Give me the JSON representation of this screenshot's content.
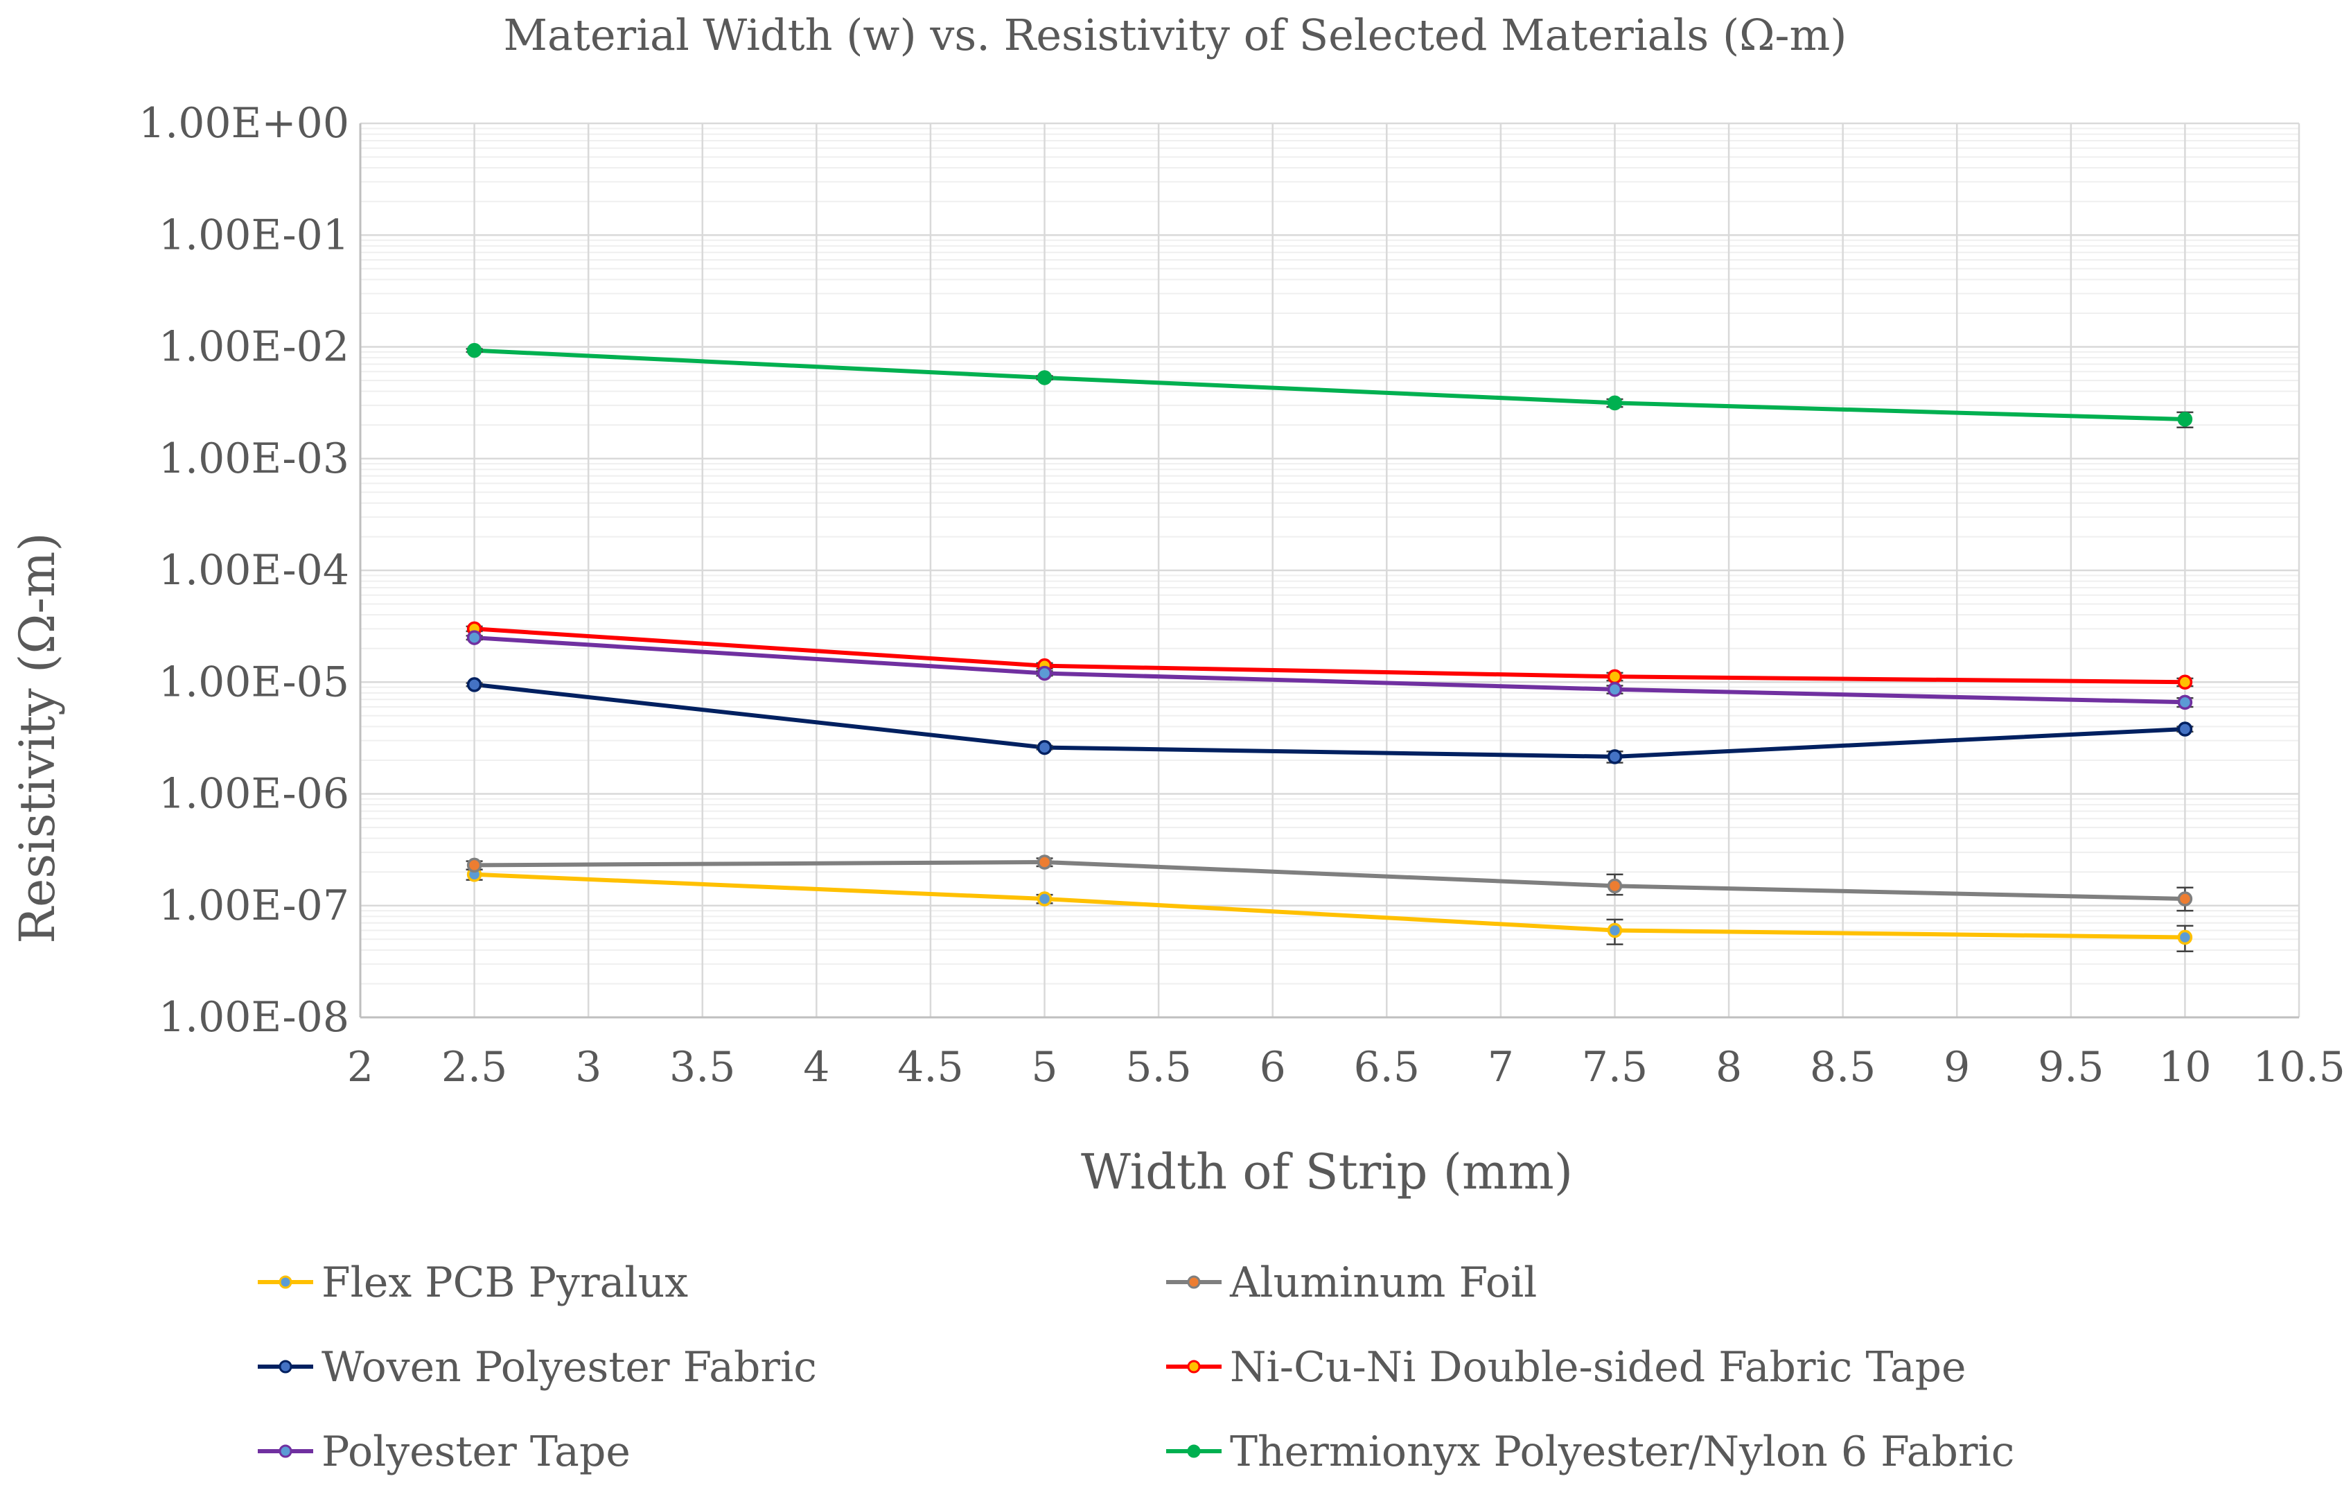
{
  "chart_data": {
    "type": "line",
    "title": "Material Width (w) vs. Resistivity of Selected Materials (Ω-m)",
    "xlabel": "Width of Strip (mm)",
    "ylabel": "Resistivity (Ω-m)",
    "xlim": [
      2,
      10.5
    ],
    "x_ticks": [
      2,
      2.5,
      3,
      3.5,
      4,
      4.5,
      5,
      5.5,
      6,
      6.5,
      7,
      7.5,
      8,
      8.5,
      9,
      9.5,
      10,
      10.5
    ],
    "x_tick_labels": [
      "2",
      "2.5",
      "3",
      "3.5",
      "4",
      "4.5",
      "5",
      "5.5",
      "6",
      "6.5",
      "7",
      "7.5",
      "8",
      "8.5",
      "9",
      "9.5",
      "10",
      "10.5"
    ],
    "y_scale": "log",
    "ylim": [
      1e-08,
      1
    ],
    "y_ticks": [
      1,
      0.1,
      0.01,
      0.001,
      0.0001,
      1e-05,
      1e-06,
      1e-07,
      1e-08
    ],
    "y_tick_labels": [
      "1.00E+00",
      "1.00E-01",
      "1.00E-02",
      "1.00E-03",
      "1.00E-04",
      "1.00E-05",
      "1.00E-06",
      "1.00E-07",
      "1.00E-08"
    ],
    "grid": true,
    "legend_position": "bottom",
    "x": [
      2.5,
      5,
      7.5,
      10
    ],
    "series": [
      {
        "name": "Flex PCB Pyralux",
        "color": "#FFC000",
        "marker_color": "#5B9BD5",
        "values": [
          1.9e-07,
          1.15e-07,
          6e-08,
          5.2e-08
        ],
        "errors_low": [
          1.7e-07,
          1.05e-07,
          4.5e-08,
          3.9e-08
        ],
        "errors_high": [
          2.1e-07,
          1.25e-07,
          7.5e-08,
          6.6e-08
        ]
      },
      {
        "name": "Aluminum Foil",
        "color": "#7F7F7F",
        "marker_color": "#ED7D31",
        "values": [
          2.3e-07,
          2.45e-07,
          1.5e-07,
          1.15e-07
        ],
        "errors_low": [
          2.1e-07,
          2.25e-07,
          1.25e-07,
          9e-08
        ],
        "errors_high": [
          2.5e-07,
          2.65e-07,
          1.9e-07,
          1.45e-07
        ]
      },
      {
        "name": "Woven Polyester Fabric",
        "color": "#002060",
        "marker_color": "#4472C4",
        "values": [
          9.5e-06,
          2.6e-06,
          2.15e-06,
          3.8e-06
        ],
        "errors_low": [
          9.2e-06,
          2.5e-06,
          1.9e-06,
          3.6e-06
        ],
        "errors_high": [
          9.8e-06,
          2.7e-06,
          2.4e-06,
          4e-06
        ]
      },
      {
        "name": "Ni-Cu-Ni Double-sided Fabric Tape",
        "color": "#FF0000",
        "marker_color": "#FFC000",
        "values": [
          3e-05,
          1.4e-05,
          1.12e-05,
          1e-05
        ],
        "errors_low": [
          2.85e-05,
          1.32e-05,
          1.03e-05,
          9.2e-06
        ],
        "errors_high": [
          3.15e-05,
          1.48e-05,
          1.21e-05,
          1.08e-05
        ]
      },
      {
        "name": "Polyester Tape",
        "color": "#7030A0",
        "marker_color": "#5B9BD5",
        "values": [
          2.5e-05,
          1.2e-05,
          8.6e-06,
          6.6e-06
        ],
        "errors_low": [
          2.4e-05,
          1.14e-05,
          7.9e-06,
          6e-06
        ],
        "errors_high": [
          2.6e-05,
          1.26e-05,
          9.3e-06,
          7.2e-06
        ]
      },
      {
        "name": "Thermionyx Polyester/Nylon 6 Fabric",
        "color": "#00B050",
        "marker_color": "#00B050",
        "values": [
          0.0093,
          0.0053,
          0.00315,
          0.00225
        ],
        "errors_low": [
          0.009,
          0.0051,
          0.0029,
          0.0019
        ],
        "errors_high": [
          0.0096,
          0.0055,
          0.0034,
          0.0026
        ]
      }
    ]
  }
}
